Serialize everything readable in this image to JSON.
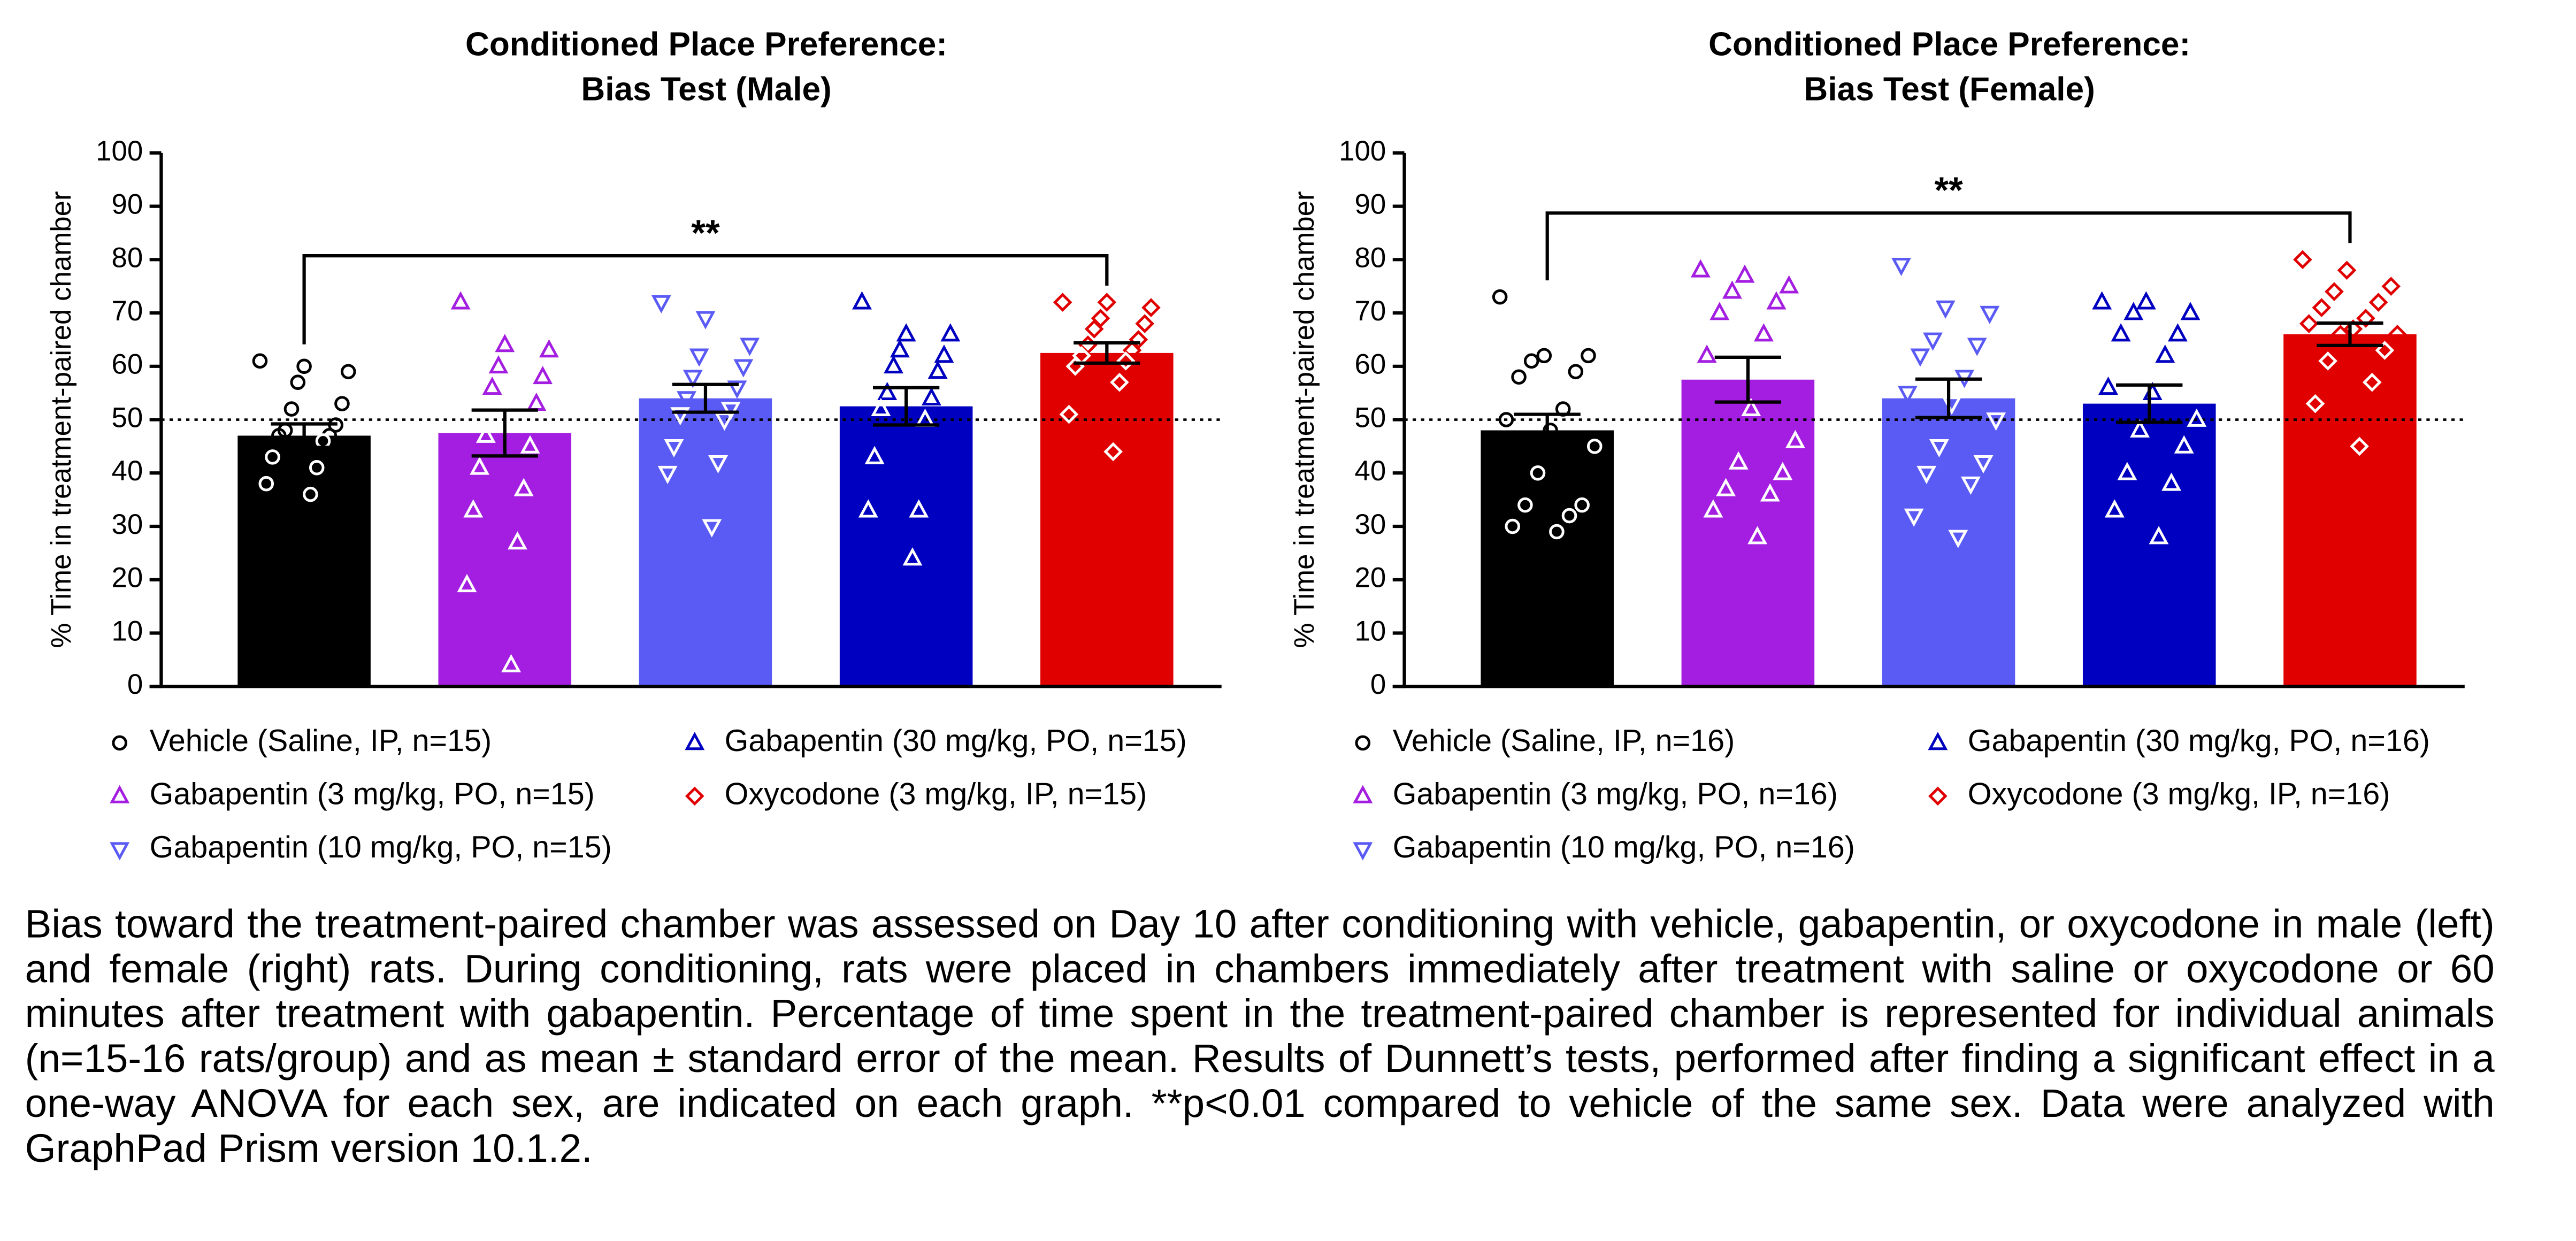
{
  "chart_data": [
    {
      "type": "bar",
      "title": [
        "Conditioned Place Preference:",
        "Bias Test (Male)"
      ],
      "y_label": "% Time in treatment-paired chamber",
      "ylim": [
        0,
        100
      ],
      "yticks": [
        0,
        10,
        20,
        30,
        40,
        50,
        60,
        70,
        80,
        90,
        100
      ],
      "reference_line": 50,
      "significance": "**",
      "series": [
        {
          "name": "Vehicle (Saline, IP, n=15)",
          "color": "#000000",
          "marker": "circle",
          "mean": 47,
          "sem": 2.2,
          "points": [
            61,
            60,
            59,
            57,
            53,
            52,
            49,
            48,
            47,
            47,
            46,
            43,
            41,
            38,
            36
          ]
        },
        {
          "name": "Gabapentin (3 mg/kg, PO, n=15)",
          "color": "#a31ee0",
          "marker": "triangle-up",
          "mean": 47.5,
          "sem": 4.3,
          "points": [
            72,
            64,
            63,
            60,
            58,
            56,
            53,
            47,
            45,
            41,
            37,
            33,
            27,
            19,
            4
          ]
        },
        {
          "name": "Gabapentin (10 mg/kg, PO, n=15)",
          "color": "#5a5af5",
          "marker": "triangle-down",
          "mean": 54,
          "sem": 2.6,
          "points": [
            72,
            69,
            64,
            62,
            60,
            58,
            56,
            54,
            52,
            51,
            50,
            45,
            42,
            40,
            30
          ]
        },
        {
          "name": "Gabapentin (30 mg/kg, PO, n=15)",
          "color": "#0000c0",
          "marker": "triangle-up",
          "mean": 52.5,
          "sem": 3.5,
          "points": [
            72,
            66,
            66,
            63,
            62,
            60,
            59,
            55,
            54,
            52,
            50,
            43,
            33,
            33,
            24
          ]
        },
        {
          "name": "Oxycodone (3 mg/kg, IP, n=15)",
          "color": "#e00000",
          "marker": "diamond",
          "mean": 62.5,
          "sem": 1.9,
          "points": [
            72,
            72,
            71,
            69,
            68,
            67,
            65,
            64,
            63,
            62,
            61,
            60,
            57,
            51,
            44
          ]
        }
      ]
    },
    {
      "type": "bar",
      "title": [
        "Conditioned Place Preference:",
        "Bias Test (Female)"
      ],
      "y_label": "% Time in treatment-paired chamber",
      "ylim": [
        0,
        100
      ],
      "yticks": [
        0,
        10,
        20,
        30,
        40,
        50,
        60,
        70,
        80,
        90,
        100
      ],
      "reference_line": 50,
      "significance": "**",
      "series": [
        {
          "name": "Vehicle (Saline, IP, n=16)",
          "color": "#000000",
          "marker": "circle",
          "mean": 48,
          "sem": 3,
          "points": [
            73,
            62,
            62,
            61,
            59,
            58,
            52,
            50,
            48,
            45,
            40,
            34,
            34,
            32,
            30,
            29
          ]
        },
        {
          "name": "Gabapentin (3 mg/kg, PO, n=16)",
          "color": "#a31ee0",
          "marker": "triangle-up",
          "mean": 57.5,
          "sem": 4.2,
          "points": [
            78,
            77,
            75,
            74,
            72,
            70,
            66,
            62,
            52,
            46,
            42,
            40,
            37,
            36,
            33,
            28
          ]
        },
        {
          "name": "Gabapentin (10 mg/kg, PO, n=16)",
          "color": "#5a5af5",
          "marker": "triangle-down",
          "mean": 54,
          "sem": 3.6,
          "points": [
            79,
            71,
            70,
            65,
            64,
            62,
            58,
            55,
            53,
            50,
            45,
            42,
            40,
            38,
            32,
            28
          ]
        },
        {
          "name": "Gabapentin (30 mg/kg, PO, n=16)",
          "color": "#0000c0",
          "marker": "triangle-up",
          "mean": 53,
          "sem": 3.5,
          "points": [
            72,
            72,
            70,
            70,
            66,
            66,
            62,
            56,
            55,
            50,
            48,
            45,
            40,
            38,
            33,
            28
          ]
        },
        {
          "name": "Oxycodone (3 mg/kg, IP, n=16)",
          "color": "#e00000",
          "marker": "diamond",
          "mean": 66,
          "sem": 2.1,
          "points": [
            80,
            78,
            75,
            74,
            72,
            71,
            69,
            68,
            67,
            66,
            66,
            63,
            61,
            57,
            53,
            45
          ]
        }
      ]
    }
  ],
  "caption": "Bias toward the treatment-paired chamber was assessed on Day 10 after conditioning with vehicle, gabapentin, or oxycodone in male (left) and female (right) rats. During conditioning, rats were placed in chambers immediately after treatment with saline or oxycodone or 60 minutes after treatment with gabapentin. Percentage of time spent in the treatment-paired chamber is represented for individual animals (n=15-16 rats/group) and as mean ± standard error of the mean. Results of Dunnett’s tests, performed after finding a significant effect in a one-way ANOVA for each sex, are indicated on each graph. **p<0.01 compared to vehicle of the same sex. Data were analyzed with GraphPad Prism version 10.1.2."
}
